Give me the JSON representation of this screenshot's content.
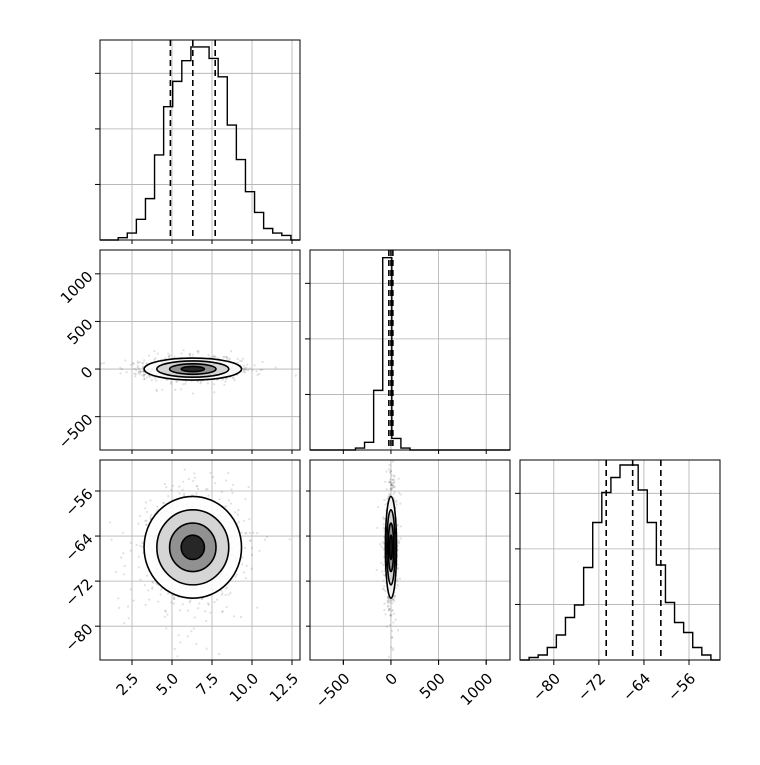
{
  "chart_data": {
    "type": "corner",
    "grid": true,
    "parameters": [
      {
        "range": [
          0.5,
          13.0
        ],
        "ticks": [
          2.5,
          5.0,
          7.5,
          10.0,
          12.5
        ],
        "tick_labels": [
          "2.5",
          "5.0",
          "7.5",
          "10.0",
          "12.5"
        ],
        "quantiles": [
          4.9,
          6.3,
          7.7
        ]
      },
      {
        "range": [
          -850,
          1250
        ],
        "ticks": [
          -500,
          0,
          500,
          1000
        ],
        "tick_labels": [
          "−500",
          "0",
          "500",
          "1000"
        ],
        "quantiles": [
          -22,
          0,
          20
        ]
      },
      {
        "range": [
          -86,
          -50.5
        ],
        "ticks": [
          -80,
          -72,
          -64,
          -56
        ],
        "tick_labels": [
          "−80",
          "−72",
          "−64",
          "−56"
        ],
        "quantiles": [
          -70.7,
          -66.0,
          -61.0
        ]
      }
    ],
    "histograms": [
      {
        "edges_range": [
          0.5,
          13.0
        ],
        "counts": [
          0,
          0,
          1,
          3,
          9,
          18,
          37,
          58,
          69,
          78,
          84,
          84,
          79,
          71,
          50,
          35,
          21,
          12,
          5,
          3,
          2,
          0
        ],
        "ymax": 87
      },
      {
        "edges_range": [
          -850,
          1250
        ],
        "counts": [
          0,
          0,
          0,
          0,
          0,
          1,
          4,
          31,
          100,
          6,
          1,
          0,
          0,
          0,
          0,
          0,
          0,
          0,
          0,
          0,
          0,
          0
        ],
        "ymax": 104
      },
      {
        "edges_range": [
          -86,
          -50.5
        ],
        "counts": [
          0,
          1,
          2,
          5,
          10,
          17,
          22,
          37,
          55,
          67,
          73,
          78,
          78,
          68,
          55,
          38,
          23,
          15,
          11,
          5,
          2,
          0
        ],
        "ymax": 80
      }
    ],
    "contour_pairs": [
      {
        "x_param": 0,
        "y_param": 1,
        "center": [
          6.3,
          0
        ],
        "spread": [
          1.45,
          55
        ]
      },
      {
        "x_param": 0,
        "y_param": 2,
        "center": [
          6.3,
          -66.0
        ],
        "spread": [
          1.45,
          4.3
        ]
      },
      {
        "x_param": 1,
        "y_param": 2,
        "center": [
          0,
          -66.0
        ],
        "spread": [
          28,
          4.3
        ]
      }
    ]
  }
}
